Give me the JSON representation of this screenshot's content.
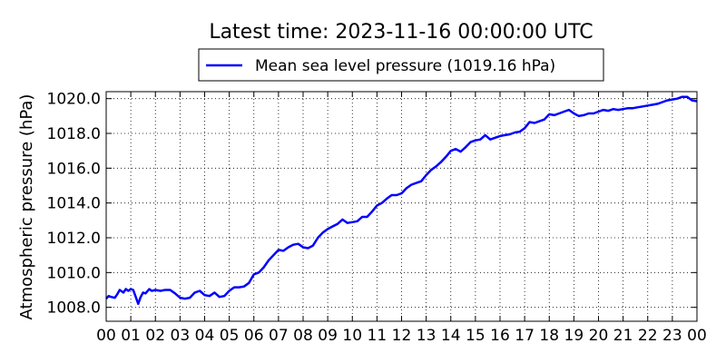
{
  "chart_data": {
    "type": "line",
    "title": "Latest time: 2023-11-16 00:00:00 UTC",
    "ylabel": "Atmospheric pressure (hPa)",
    "xlabel": "",
    "xlim": [
      0,
      24
    ],
    "ylim": [
      1007.2,
      1020.4
    ],
    "grid": true,
    "legend_placement": "top-center",
    "x_tick_labels": [
      "00",
      "01",
      "02",
      "03",
      "04",
      "05",
      "06",
      "07",
      "08",
      "09",
      "10",
      "11",
      "12",
      "13",
      "14",
      "15",
      "16",
      "17",
      "18",
      "19",
      "20",
      "21",
      "22",
      "23",
      "00"
    ],
    "y_tick_labels": [
      "1008.0",
      "1010.0",
      "1012.0",
      "1014.0",
      "1016.0",
      "1018.0",
      "1020.0"
    ],
    "y_tick_values": [
      1008,
      1010,
      1012,
      1014,
      1016,
      1018,
      1020
    ],
    "series": [
      {
        "name": "Mean sea level pressure (1019.16 hPa)",
        "color": "#0000ff",
        "points": [
          [
            0.0,
            1008.5
          ],
          [
            0.1,
            1008.65
          ],
          [
            0.2,
            1008.6
          ],
          [
            0.35,
            1008.55
          ],
          [
            0.45,
            1008.75
          ],
          [
            0.55,
            1009.0
          ],
          [
            0.7,
            1008.85
          ],
          [
            0.8,
            1009.05
          ],
          [
            0.9,
            1008.95
          ],
          [
            1.0,
            1009.05
          ],
          [
            1.1,
            1009.0
          ],
          [
            1.2,
            1008.6
          ],
          [
            1.3,
            1008.2
          ],
          [
            1.4,
            1008.6
          ],
          [
            1.5,
            1008.85
          ],
          [
            1.6,
            1008.8
          ],
          [
            1.75,
            1009.05
          ],
          [
            1.85,
            1008.95
          ],
          [
            2.0,
            1009.0
          ],
          [
            2.2,
            1008.95
          ],
          [
            2.4,
            1009.0
          ],
          [
            2.6,
            1009.0
          ],
          [
            2.8,
            1008.8
          ],
          [
            3.0,
            1008.55
          ],
          [
            3.2,
            1008.5
          ],
          [
            3.4,
            1008.55
          ],
          [
            3.6,
            1008.85
          ],
          [
            3.8,
            1008.95
          ],
          [
            4.0,
            1008.7
          ],
          [
            4.2,
            1008.65
          ],
          [
            4.4,
            1008.85
          ],
          [
            4.6,
            1008.6
          ],
          [
            4.8,
            1008.65
          ],
          [
            5.0,
            1008.95
          ],
          [
            5.2,
            1009.15
          ],
          [
            5.4,
            1009.15
          ],
          [
            5.6,
            1009.2
          ],
          [
            5.8,
            1009.4
          ],
          [
            6.0,
            1009.9
          ],
          [
            6.2,
            1010.0
          ],
          [
            6.4,
            1010.3
          ],
          [
            6.6,
            1010.7
          ],
          [
            6.8,
            1011.0
          ],
          [
            7.0,
            1011.3
          ],
          [
            7.2,
            1011.25
          ],
          [
            7.4,
            1011.45
          ],
          [
            7.6,
            1011.6
          ],
          [
            7.8,
            1011.65
          ],
          [
            8.0,
            1011.45
          ],
          [
            8.2,
            1011.4
          ],
          [
            8.4,
            1011.55
          ],
          [
            8.6,
            1012.0
          ],
          [
            8.8,
            1012.3
          ],
          [
            9.0,
            1012.5
          ],
          [
            9.2,
            1012.65
          ],
          [
            9.4,
            1012.8
          ],
          [
            9.6,
            1013.05
          ],
          [
            9.8,
            1012.85
          ],
          [
            10.0,
            1012.9
          ],
          [
            10.2,
            1012.95
          ],
          [
            10.4,
            1013.2
          ],
          [
            10.6,
            1013.2
          ],
          [
            10.8,
            1013.5
          ],
          [
            11.0,
            1013.85
          ],
          [
            11.2,
            1014.0
          ],
          [
            11.4,
            1014.25
          ],
          [
            11.6,
            1014.45
          ],
          [
            11.8,
            1014.45
          ],
          [
            12.0,
            1014.55
          ],
          [
            12.2,
            1014.85
          ],
          [
            12.4,
            1015.05
          ],
          [
            12.6,
            1015.15
          ],
          [
            12.8,
            1015.25
          ],
          [
            13.0,
            1015.6
          ],
          [
            13.2,
            1015.9
          ],
          [
            13.4,
            1016.1
          ],
          [
            13.6,
            1016.35
          ],
          [
            13.8,
            1016.65
          ],
          [
            14.0,
            1017.0
          ],
          [
            14.2,
            1017.1
          ],
          [
            14.4,
            1016.95
          ],
          [
            14.6,
            1017.2
          ],
          [
            14.8,
            1017.5
          ],
          [
            15.0,
            1017.6
          ],
          [
            15.2,
            1017.65
          ],
          [
            15.4,
            1017.9
          ],
          [
            15.6,
            1017.65
          ],
          [
            15.8,
            1017.75
          ],
          [
            16.0,
            1017.85
          ],
          [
            16.2,
            1017.9
          ],
          [
            16.4,
            1017.95
          ],
          [
            16.6,
            1018.05
          ],
          [
            16.8,
            1018.1
          ],
          [
            17.0,
            1018.3
          ],
          [
            17.2,
            1018.65
          ],
          [
            17.4,
            1018.6
          ],
          [
            17.6,
            1018.7
          ],
          [
            17.8,
            1018.8
          ],
          [
            18.0,
            1019.1
          ],
          [
            18.2,
            1019.05
          ],
          [
            18.4,
            1019.15
          ],
          [
            18.6,
            1019.25
          ],
          [
            18.8,
            1019.35
          ],
          [
            19.0,
            1019.15
          ],
          [
            19.2,
            1019.0
          ],
          [
            19.4,
            1019.05
          ],
          [
            19.6,
            1019.15
          ],
          [
            19.8,
            1019.15
          ],
          [
            20.0,
            1019.25
          ],
          [
            20.2,
            1019.35
          ],
          [
            20.4,
            1019.3
          ],
          [
            20.6,
            1019.4
          ],
          [
            20.8,
            1019.35
          ],
          [
            21.0,
            1019.4
          ],
          [
            21.2,
            1019.45
          ],
          [
            21.4,
            1019.45
          ],
          [
            21.6,
            1019.5
          ],
          [
            21.8,
            1019.55
          ],
          [
            22.0,
            1019.6
          ],
          [
            22.2,
            1019.65
          ],
          [
            22.4,
            1019.7
          ],
          [
            22.6,
            1019.8
          ],
          [
            22.8,
            1019.9
          ],
          [
            23.0,
            1019.95
          ],
          [
            23.2,
            1020.0
          ],
          [
            23.4,
            1020.1
          ],
          [
            23.6,
            1020.1
          ],
          [
            23.8,
            1019.9
          ],
          [
            24.0,
            1019.85
          ]
        ]
      }
    ]
  }
}
